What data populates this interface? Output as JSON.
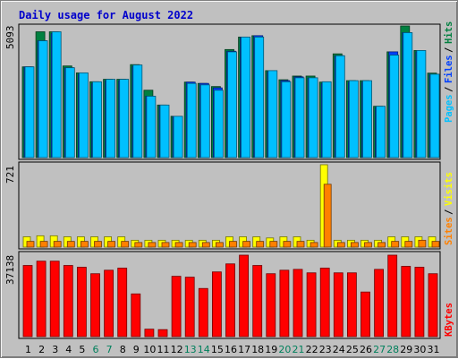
{
  "title": "Daily usage for August 2022",
  "colors": {
    "background": "#c0c0c0",
    "hits": "#008040",
    "files": "#0040ff",
    "pages": "#00c0ff",
    "visits": "#ffff00",
    "sites": "#ff8000",
    "kbytes": "#ff0000",
    "weekend_label": "#00805c",
    "weekday_label": "#000000"
  },
  "chart_data": [
    {
      "type": "bar",
      "title": "Daily usage for August 2022",
      "categories": [
        "1",
        "2",
        "3",
        "4",
        "5",
        "6",
        "7",
        "8",
        "9",
        "10",
        "11",
        "12",
        "13",
        "14",
        "15",
        "16",
        "17",
        "18",
        "19",
        "20",
        "21",
        "22",
        "23",
        "24",
        "25",
        "26",
        "27",
        "28",
        "29",
        "30",
        "31"
      ],
      "weekend_days": [
        "6",
        "7",
        "13",
        "14",
        "20",
        "21",
        "27",
        "28"
      ],
      "ylabel_top": "5093",
      "right_labels": [
        {
          "text": "Hits",
          "color": "#008040"
        },
        {
          "text": "Files",
          "color": "#0040ff"
        },
        {
          "text": "Pages",
          "color": "#00c0ff"
        }
      ],
      "ylim": [
        0,
        5093
      ],
      "series": [
        {
          "name": "Hits",
          "color": "#008040",
          "values": [
            3510,
            4868,
            4868,
            3545,
            3278,
            2934,
            3029,
            3029,
            3597,
            2606,
            2033,
            1597,
            2920,
            2869,
            2748,
            4181,
            4664,
            4716,
            3364,
            3011,
            3154,
            3154,
            2920,
            4014,
            2977,
            2977,
            1985,
            4091,
            5093,
            4143,
            3269
          ]
        },
        {
          "name": "Files",
          "color": "#0040ff",
          "values": [
            3510,
            4520,
            4800,
            3476,
            3226,
            2869,
            2977,
            2977,
            3526,
            2375,
            2008,
            1597,
            2920,
            2869,
            2697,
            4115,
            4658,
            4716,
            3321,
            2977,
            3123,
            3083,
            2869,
            3941,
            2920,
            2920,
            1942,
            4091,
            4834,
            4091,
            3226
          ]
        },
        {
          "name": "Pages",
          "color": "#00c0ff",
          "values": [
            3510,
            4520,
            4868,
            3476,
            3278,
            2934,
            3029,
            3029,
            3584,
            2375,
            2033,
            1597,
            2869,
            2813,
            2606,
            4091,
            4664,
            4664,
            3364,
            2934,
            3088,
            3088,
            2934,
            3941,
            2977,
            2977,
            1985,
            3965,
            4834,
            4143,
            3226
          ]
        }
      ]
    },
    {
      "type": "bar",
      "ylabel_top": "721",
      "right_labels": [
        {
          "text": "Visits",
          "color": "#ffff00"
        },
        {
          "text": "Sites",
          "color": "#ff8000"
        }
      ],
      "ylim": [
        0,
        721
      ],
      "series": [
        {
          "name": "Visits",
          "color": "#ffff00",
          "values": [
            90,
            99,
            99,
            90,
            90,
            90,
            90,
            90,
            60,
            60,
            60,
            60,
            60,
            60,
            60,
            90,
            90,
            90,
            80,
            90,
            90,
            60,
            721,
            60,
            60,
            60,
            60,
            90,
            90,
            90,
            90
          ]
        },
        {
          "name": "Sites",
          "color": "#ff8000",
          "values": [
            50,
            50,
            50,
            50,
            50,
            50,
            50,
            50,
            40,
            40,
            40,
            40,
            40,
            40,
            40,
            50,
            50,
            50,
            50,
            50,
            50,
            40,
            550,
            40,
            40,
            40,
            40,
            50,
            50,
            60,
            50
          ]
        }
      ]
    },
    {
      "type": "bar",
      "ylabel_top": "37138",
      "right_labels": [
        {
          "text": "KBytes",
          "color": "#ff0000"
        }
      ],
      "ylim": [
        0,
        37138
      ],
      "series": [
        {
          "name": "KBytes",
          "color": "#ff0000",
          "values": [
            32440,
            34400,
            34400,
            32440,
            31640,
            28680,
            30270,
            31240,
            19480,
            3400,
            3200,
            27500,
            27100,
            21950,
            29500,
            33160,
            37138,
            32440,
            28680,
            30270,
            30660,
            29080,
            31240,
            29080,
            29080,
            20340,
            30660,
            37138,
            32040,
            31640,
            28680
          ]
        }
      ]
    }
  ]
}
